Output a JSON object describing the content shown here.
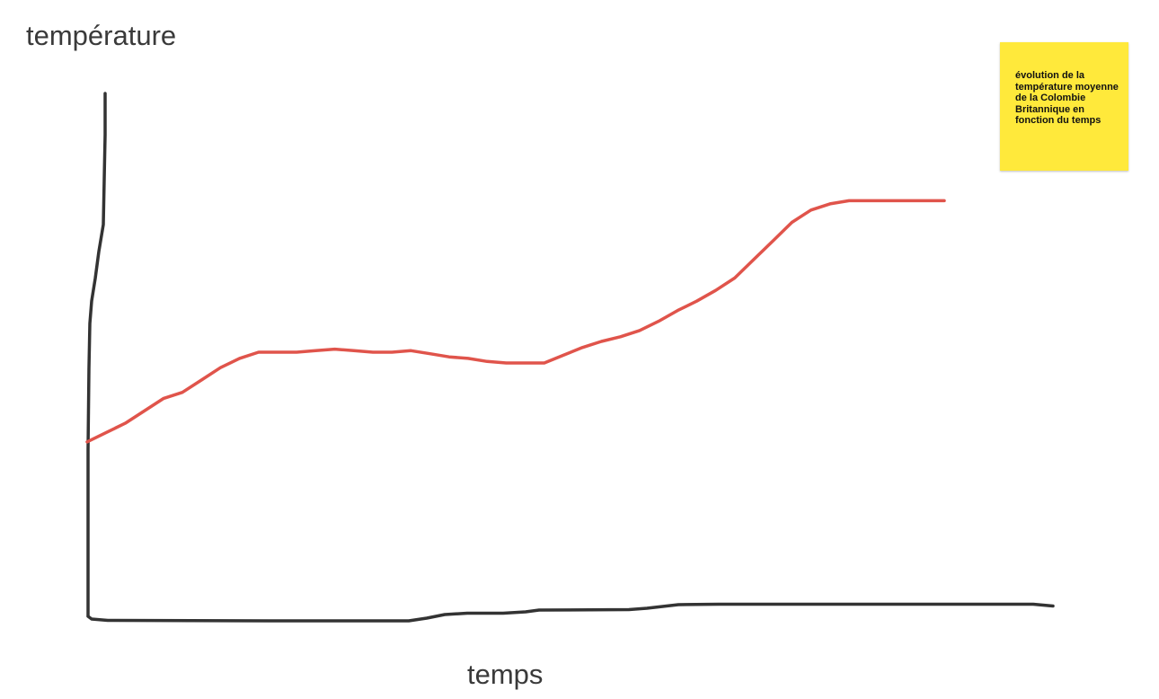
{
  "chart_data": {
    "type": "line",
    "title": "",
    "xlabel": "temps",
    "ylabel": "température",
    "xlim": [
      0,
      100
    ],
    "ylim": [
      0,
      100
    ],
    "grid": false,
    "series": [
      {
        "color": "#e0544b",
        "x": [
          0,
          2,
          4,
          6,
          8,
          10,
          12,
          14,
          16,
          18,
          20,
          22,
          24,
          26,
          28,
          30,
          32,
          34,
          36,
          38,
          40,
          42,
          44,
          46,
          48,
          50,
          52,
          54,
          56,
          58,
          60,
          62,
          64,
          66,
          68,
          70,
          72,
          74,
          76,
          78,
          80,
          82,
          84,
          85,
          86,
          87,
          88,
          89,
          90
        ],
        "y": [
          21,
          24,
          27,
          31,
          35,
          37,
          41,
          45,
          48,
          50,
          50,
          50,
          50.5,
          51,
          50.5,
          50,
          50,
          50.5,
          49.5,
          48.5,
          48,
          47,
          46.5,
          46.5,
          46.5,
          49,
          51.5,
          53.5,
          55,
          57,
          60,
          63.5,
          66.5,
          70,
          74,
          80,
          86,
          92,
          96,
          98,
          99,
          99,
          99,
          99,
          99,
          99,
          99,
          99,
          99
        ]
      }
    ],
    "axis_color": "#333333"
  },
  "note": {
    "text": "évolution de la température moyenne de la Colombie Britannique en fonction du temps",
    "color": "#ffe93b"
  }
}
